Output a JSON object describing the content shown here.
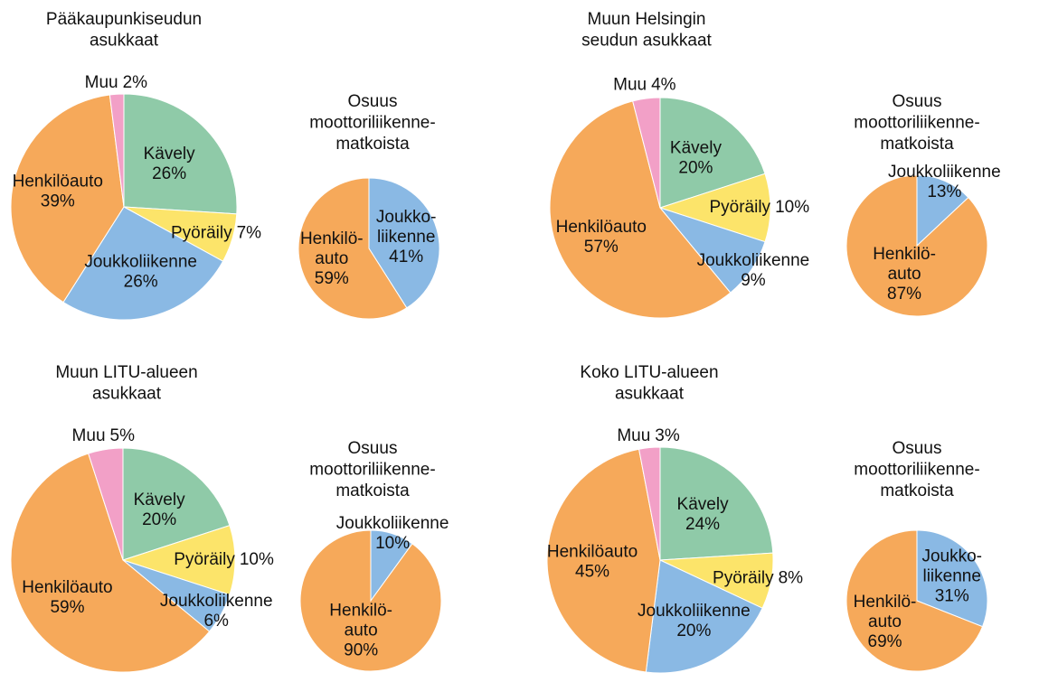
{
  "chart_data": [
    {
      "type": "pie",
      "title": [
        "Pääkaupunkiseudun",
        "asukkaat"
      ],
      "categories": [
        [
          "Kävely"
        ],
        [
          "Pyöräily"
        ],
        [
          "Joukkoliikenne"
        ],
        [
          "Henkilöauto"
        ],
        [
          "Muu"
        ]
      ],
      "values": [
        26,
        7,
        26,
        39,
        2
      ],
      "value_labels": [
        "26%",
        "7%",
        "26%",
        "39%",
        "2%"
      ],
      "colors": [
        "#8fcaa8",
        "#fce46a",
        "#8ab9e4",
        "#f6a95a",
        "#f2a0c7"
      ]
    },
    {
      "type": "pie",
      "title": [
        "Osuus",
        "moottoriliikenne-",
        "matkoista"
      ],
      "categories": [
        [
          "Joukko-",
          "liikenne"
        ],
        [
          "Henkilö-",
          "auto"
        ]
      ],
      "values": [
        41,
        59
      ],
      "value_labels": [
        "41%",
        "59%"
      ],
      "colors": [
        "#8ab9e4",
        "#f6a95a"
      ]
    },
    {
      "type": "pie",
      "title": [
        "Muun Helsingin",
        "seudun asukkaat"
      ],
      "categories": [
        [
          "Kävely"
        ],
        [
          "Pyöräily"
        ],
        [
          "Joukkoliikenne"
        ],
        [
          "Henkilöauto"
        ],
        [
          "Muu"
        ]
      ],
      "values": [
        20,
        10,
        9,
        57,
        4
      ],
      "value_labels": [
        "20%",
        "10%",
        "9%",
        "57%",
        "4%"
      ],
      "colors": [
        "#8fcaa8",
        "#fce46a",
        "#8ab9e4",
        "#f6a95a",
        "#f2a0c7"
      ]
    },
    {
      "type": "pie",
      "title": [
        "Osuus",
        "moottoriliikenne-",
        "matkoista"
      ],
      "categories": [
        [
          "Joukkoliikenne"
        ],
        [
          "Henkilö-",
          "auto"
        ]
      ],
      "values": [
        13,
        87
      ],
      "value_labels": [
        "13%",
        "87%"
      ],
      "colors": [
        "#8ab9e4",
        "#f6a95a"
      ]
    },
    {
      "type": "pie",
      "title": [
        "Muun LITU-alueen",
        "asukkaat"
      ],
      "categories": [
        [
          "Kävely"
        ],
        [
          "Pyöräily"
        ],
        [
          "Joukkoliikenne"
        ],
        [
          "Henkilöauto"
        ],
        [
          "Muu"
        ]
      ],
      "values": [
        20,
        10,
        6,
        59,
        5
      ],
      "value_labels": [
        "20%",
        "10%",
        "6%",
        "59%",
        "5%"
      ],
      "colors": [
        "#8fcaa8",
        "#fce46a",
        "#8ab9e4",
        "#f6a95a",
        "#f2a0c7"
      ]
    },
    {
      "type": "pie",
      "title": [
        "Osuus",
        "moottoriliikenne-",
        "matkoista"
      ],
      "categories": [
        [
          "Joukkoliikenne"
        ],
        [
          "Henkilö-",
          "auto"
        ]
      ],
      "values": [
        10,
        90
      ],
      "value_labels": [
        "10%",
        "90%"
      ],
      "colors": [
        "#8ab9e4",
        "#f6a95a"
      ]
    },
    {
      "type": "pie",
      "title": [
        "Koko LITU-alueen",
        "asukkaat"
      ],
      "categories": [
        [
          "Kävely"
        ],
        [
          "Pyöräily"
        ],
        [
          "Joukkoliikenne"
        ],
        [
          "Henkilöauto"
        ],
        [
          "Muu"
        ]
      ],
      "values": [
        24,
        8,
        20,
        45,
        3
      ],
      "value_labels": [
        "24%",
        "8%",
        "20%",
        "45%",
        "3%"
      ],
      "colors": [
        "#8fcaa8",
        "#fce46a",
        "#8ab9e4",
        "#f6a95a",
        "#f2a0c7"
      ]
    },
    {
      "type": "pie",
      "title": [
        "Osuus",
        "moottoriliikenne-",
        "matkoista"
      ],
      "categories": [
        [
          "Joukko-",
          "liikenne"
        ],
        [
          "Henkilö-",
          "auto"
        ]
      ],
      "values": [
        31,
        69
      ],
      "value_labels": [
        "31%",
        "69%"
      ],
      "colors": [
        "#8ab9e4",
        "#f6a95a"
      ]
    }
  ]
}
